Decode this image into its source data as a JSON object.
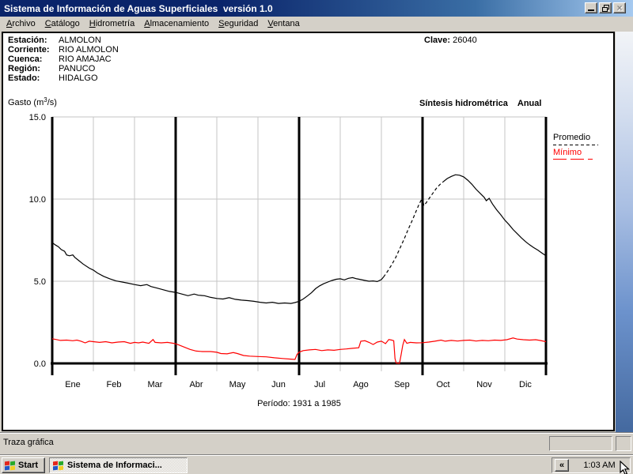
{
  "window": {
    "title": "Sistema de Información de Aguas Superficiales  versión 1.0"
  },
  "menu": {
    "items": [
      {
        "id": "archivo",
        "label": "Archivo",
        "accel_index": 0
      },
      {
        "id": "catalogo",
        "label": "Catálogo",
        "accel_index": 0
      },
      {
        "id": "hidrometria",
        "label": "Hidrometría",
        "accel_index": 0
      },
      {
        "id": "almacenamiento",
        "label": "Almacenamiento",
        "accel_index": 0
      },
      {
        "id": "seguridad",
        "label": "Seguridad",
        "accel_index": 0
      },
      {
        "id": "ventana",
        "label": "Ventana",
        "accel_index": 0
      }
    ]
  },
  "station": {
    "rows": [
      {
        "label": "Estación:",
        "value": "ALMOLON"
      },
      {
        "label": "Corriente:",
        "value": "RIO ALMOLON"
      },
      {
        "label": "Cuenca:",
        "value": "RIO AMAJAC"
      },
      {
        "label": "Región:",
        "value": "PANUCO"
      },
      {
        "label": "Estado:",
        "value": "HIDALGO"
      }
    ],
    "clave_label": "Clave:",
    "clave_value": "26040"
  },
  "chart_header": {
    "gasto_pre": "Gasto (m",
    "gasto_sup": "3",
    "gasto_post": "/s)",
    "right_title": "Síntesis hidrométrica",
    "right_title_2": "Anual"
  },
  "chart_data": {
    "type": "line",
    "title": "Síntesis hidrométrica Anual",
    "ylabel": "Gasto (m3/s)",
    "ylim": [
      0,
      15
    ],
    "grid": true,
    "legend_position": "right",
    "yticks": [
      {
        "value": 15,
        "label": "15.0"
      },
      {
        "value": 10,
        "label": "10.0"
      },
      {
        "value": 5,
        "label": "5.0"
      },
      {
        "value": 0,
        "label": "0.0"
      }
    ],
    "months": [
      "Ene",
      "Feb",
      "Mar",
      "Abr",
      "May",
      "Jun",
      "Jul",
      "Ago",
      "Sep",
      "Oct",
      "Nov",
      "Dic"
    ],
    "period_label": "Período: 1931 a 1985",
    "legend": [
      {
        "name": "Promedio",
        "color": "#000000",
        "style": "dashed"
      },
      {
        "name": "Mínimo",
        "color": "#ff0000",
        "style": "long-dash"
      }
    ],
    "series": [
      {
        "name": "Promedio",
        "color": "#000000",
        "segments": [
          {
            "dash": false,
            "points": [
              [
                0,
                7.35
              ],
              [
                0.08,
                7.2
              ],
              [
                0.15,
                7.1
              ],
              [
                0.22,
                6.93
              ],
              [
                0.3,
                6.82
              ],
              [
                0.35,
                6.6
              ],
              [
                0.42,
                6.55
              ],
              [
                0.5,
                6.6
              ],
              [
                0.55,
                6.45
              ],
              [
                0.65,
                6.25
              ],
              [
                0.75,
                6.05
              ],
              [
                0.9,
                5.8
              ],
              [
                1,
                5.68
              ],
              [
                1.1,
                5.5
              ],
              [
                1.25,
                5.3
              ],
              [
                1.4,
                5.15
              ],
              [
                1.55,
                5.02
              ],
              [
                1.7,
                4.95
              ],
              [
                1.85,
                4.88
              ],
              [
                2,
                4.8
              ],
              [
                2.15,
                4.73
              ],
              [
                2.3,
                4.8
              ],
              [
                2.4,
                4.68
              ],
              [
                2.55,
                4.58
              ],
              [
                2.7,
                4.48
              ],
              [
                2.85,
                4.38
              ],
              [
                3,
                4.32
              ],
              [
                3.15,
                4.22
              ],
              [
                3.3,
                4.12
              ],
              [
                3.45,
                4.22
              ],
              [
                3.55,
                4.15
              ],
              [
                3.7,
                4.12
              ],
              [
                3.85,
                4.02
              ],
              [
                4,
                3.95
              ],
              [
                4.15,
                3.92
              ],
              [
                4.3,
                4
              ],
              [
                4.45,
                3.9
              ],
              [
                4.6,
                3.85
              ],
              [
                4.75,
                3.82
              ],
              [
                4.9,
                3.78
              ],
              [
                5.05,
                3.72
              ],
              [
                5.2,
                3.68
              ],
              [
                5.35,
                3.72
              ],
              [
                5.5,
                3.65
              ],
              [
                5.65,
                3.68
              ],
              [
                5.8,
                3.65
              ],
              [
                5.9,
                3.7
              ],
              [
                6,
                3.78
              ],
              [
                6.1,
                3.92
              ],
              [
                6.2,
                4.1
              ],
              [
                6.3,
                4.3
              ],
              [
                6.4,
                4.55
              ],
              [
                6.5,
                4.72
              ],
              [
                6.6,
                4.85
              ],
              [
                6.7,
                4.95
              ],
              [
                6.8,
                5.05
              ],
              [
                6.9,
                5.12
              ],
              [
                7,
                5.15
              ],
              [
                7.1,
                5.08
              ],
              [
                7.2,
                5.18
              ],
              [
                7.3,
                5.22
              ],
              [
                7.4,
                5.15
              ],
              [
                7.5,
                5.1
              ],
              [
                7.6,
                5.05
              ],
              [
                7.7,
                5
              ],
              [
                7.8,
                5.02
              ],
              [
                7.9,
                4.98
              ],
              [
                8,
                5.1
              ],
              [
                8.05,
                5.25
              ]
            ]
          },
          {
            "dash": true,
            "points": [
              [
                8.05,
                5.25
              ],
              [
                8.15,
                5.6
              ],
              [
                8.25,
                6
              ],
              [
                8.35,
                6.45
              ],
              [
                8.45,
                7
              ],
              [
                8.55,
                7.55
              ],
              [
                8.65,
                8.15
              ],
              [
                8.75,
                8.7
              ],
              [
                8.85,
                9.3
              ],
              [
                8.92,
                9.7
              ],
              [
                8.98,
                10
              ],
              [
                9,
                10.1
              ],
              [
                9.03,
                9.6
              ],
              [
                9.08,
                9.75
              ],
              [
                9.15,
                10
              ],
              [
                9.25,
                10.35
              ],
              [
                9.35,
                10.7
              ],
              [
                9.45,
                10.95
              ],
              [
                9.5,
                11.05
              ]
            ]
          },
          {
            "dash": false,
            "points": [
              [
                9.5,
                11.05
              ],
              [
                9.6,
                11.25
              ],
              [
                9.7,
                11.38
              ],
              [
                9.8,
                11.48
              ],
              [
                9.9,
                11.45
              ],
              [
                10,
                11.35
              ],
              [
                10.1,
                11.15
              ],
              [
                10.2,
                10.9
              ],
              [
                10.3,
                10.6
              ],
              [
                10.4,
                10.35
              ],
              [
                10.5,
                10.1
              ],
              [
                10.55,
                9.9
              ],
              [
                10.62,
                10.05
              ],
              [
                10.7,
                9.7
              ],
              [
                10.8,
                9.35
              ],
              [
                10.9,
                9.05
              ],
              [
                11,
                8.72
              ],
              [
                11.1,
                8.45
              ],
              [
                11.2,
                8.15
              ],
              [
                11.3,
                7.9
              ],
              [
                11.4,
                7.65
              ],
              [
                11.5,
                7.42
              ],
              [
                11.6,
                7.22
              ],
              [
                11.7,
                7.05
              ],
              [
                11.8,
                6.9
              ],
              [
                11.9,
                6.72
              ],
              [
                12,
                6.55
              ]
            ]
          }
        ]
      },
      {
        "name": "Mínimo",
        "color": "#ff0000",
        "segments": [
          {
            "dash": false,
            "points": [
              [
                0,
                1.5
              ],
              [
                0.1,
                1.45
              ],
              [
                0.2,
                1.4
              ],
              [
                0.35,
                1.42
              ],
              [
                0.5,
                1.38
              ],
              [
                0.6,
                1.42
              ],
              [
                0.7,
                1.35
              ],
              [
                0.8,
                1.25
              ],
              [
                0.9,
                1.35
              ],
              [
                1,
                1.32
              ],
              [
                1.15,
                1.28
              ],
              [
                1.3,
                1.32
              ],
              [
                1.45,
                1.25
              ],
              [
                1.6,
                1.3
              ],
              [
                1.75,
                1.32
              ],
              [
                1.9,
                1.22
              ],
              [
                2,
                1.28
              ],
              [
                2.1,
                1.25
              ],
              [
                2.2,
                1.3
              ],
              [
                2.35,
                1.22
              ],
              [
                2.45,
                1.45
              ],
              [
                2.5,
                1.28
              ],
              [
                2.65,
                1.25
              ],
              [
                2.8,
                1.28
              ],
              [
                2.95,
                1.22
              ],
              [
                3.05,
                1.15
              ],
              [
                3.2,
                1
              ],
              [
                3.35,
                0.85
              ],
              [
                3.5,
                0.75
              ],
              [
                3.65,
                0.72
              ],
              [
                3.85,
                0.72
              ],
              [
                4,
                0.68
              ],
              [
                4.1,
                0.6
              ],
              [
                4.25,
                0.58
              ],
              [
                4.4,
                0.66
              ],
              [
                4.5,
                0.6
              ],
              [
                4.65,
                0.48
              ],
              [
                4.8,
                0.44
              ],
              [
                5,
                0.42
              ],
              [
                5.2,
                0.4
              ],
              [
                5.4,
                0.34
              ],
              [
                5.6,
                0.3
              ],
              [
                5.8,
                0.26
              ],
              [
                5.9,
                0.24
              ],
              [
                5.95,
                0.55
              ],
              [
                6,
                0.68
              ],
              [
                6.1,
                0.78
              ],
              [
                6.25,
                0.82
              ],
              [
                6.4,
                0.85
              ],
              [
                6.55,
                0.78
              ],
              [
                6.7,
                0.82
              ],
              [
                6.85,
                0.8
              ],
              [
                7,
                0.85
              ],
              [
                7.15,
                0.88
              ],
              [
                7.3,
                0.92
              ],
              [
                7.45,
                0.95
              ],
              [
                7.5,
                1.35
              ],
              [
                7.6,
                1.38
              ],
              [
                7.7,
                1.28
              ],
              [
                7.8,
                1.15
              ],
              [
                7.9,
                1.3
              ],
              [
                8,
                1.35
              ],
              [
                8.05,
                1.28
              ],
              [
                8.1,
                1.2
              ],
              [
                8.18,
                1.45
              ],
              [
                8.25,
                1.42
              ],
              [
                8.3,
                1.38
              ],
              [
                8.33,
                0.3
              ],
              [
                8.36,
                0.02
              ],
              [
                8.44,
                0
              ],
              [
                8.48,
                0.55
              ],
              [
                8.52,
                1.1
              ],
              [
                8.56,
                1.45
              ],
              [
                8.62,
                1.22
              ],
              [
                8.7,
                1.28
              ],
              [
                8.85,
                1.25
              ],
              [
                9,
                1.26
              ],
              [
                9.15,
                1.3
              ],
              [
                9.3,
                1.35
              ],
              [
                9.45,
                1.42
              ],
              [
                9.55,
                1.35
              ],
              [
                9.7,
                1.4
              ],
              [
                9.85,
                1.36
              ],
              [
                10,
                1.4
              ],
              [
                10.15,
                1.42
              ],
              [
                10.3,
                1.36
              ],
              [
                10.45,
                1.4
              ],
              [
                10.6,
                1.38
              ],
              [
                10.75,
                1.42
              ],
              [
                10.9,
                1.4
              ],
              [
                11.05,
                1.44
              ],
              [
                11.2,
                1.55
              ],
              [
                11.3,
                1.48
              ],
              [
                11.45,
                1.44
              ],
              [
                11.6,
                1.42
              ],
              [
                11.75,
                1.44
              ],
              [
                11.85,
                1.4
              ],
              [
                12,
                1.32
              ]
            ]
          }
        ]
      }
    ]
  },
  "status_bar": {
    "text": "Traza gráfica"
  },
  "taskbar": {
    "start_label": "Start",
    "task_label": "Sistema de Informaci...",
    "tray_button": "«",
    "clock": "1:03 AM"
  }
}
